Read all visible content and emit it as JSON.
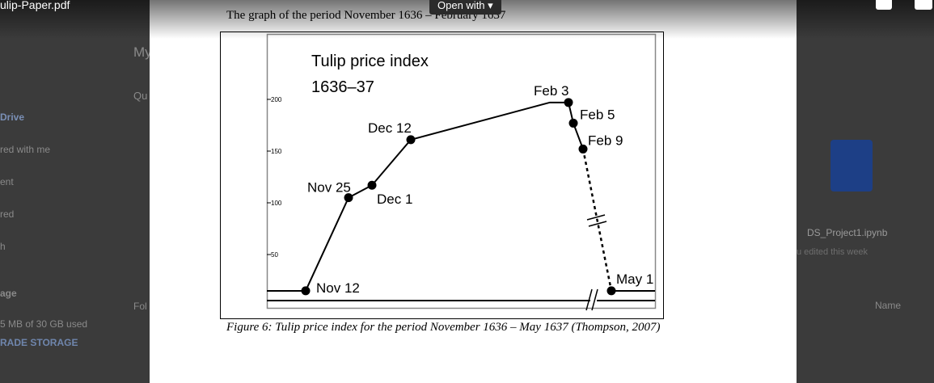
{
  "viewer": {
    "file_name": "ulip-Paper.pdf",
    "open_with": "Open with"
  },
  "background": {
    "sidebar": [
      "Drive",
      "red with me",
      "ent",
      "red",
      "h"
    ],
    "storage_heading": "age",
    "storage_used": "5 MB of 30 GB used",
    "upgrade": "RADE STORAGE",
    "main": [
      "My",
      "Qu",
      "Fol"
    ],
    "file_name": "DS_Project1.ipynb",
    "file_meta": "u edited this week",
    "sort": "Name"
  },
  "document": {
    "heading": "The graph of the period November 1636 – February 1637",
    "caption": "Figure 6: Tulip price index for the period November 1636 – May 1637 (Thompson, 2007)"
  },
  "chart_data": {
    "type": "line",
    "title": "Tulip price index",
    "subtitle": "1636–37",
    "categories": [
      "Nov 12",
      "Nov 25",
      "Dec 1",
      "Dec 12",
      null,
      "Feb 3",
      "Feb 5",
      "Feb 9",
      "May 1"
    ],
    "values": [
      15,
      105,
      117,
      161,
      197,
      197,
      177,
      152,
      15
    ],
    "color": "#000000",
    "ylim": [
      -2,
      262
    ],
    "yticks": [
      50,
      100,
      150,
      200
    ]
  }
}
